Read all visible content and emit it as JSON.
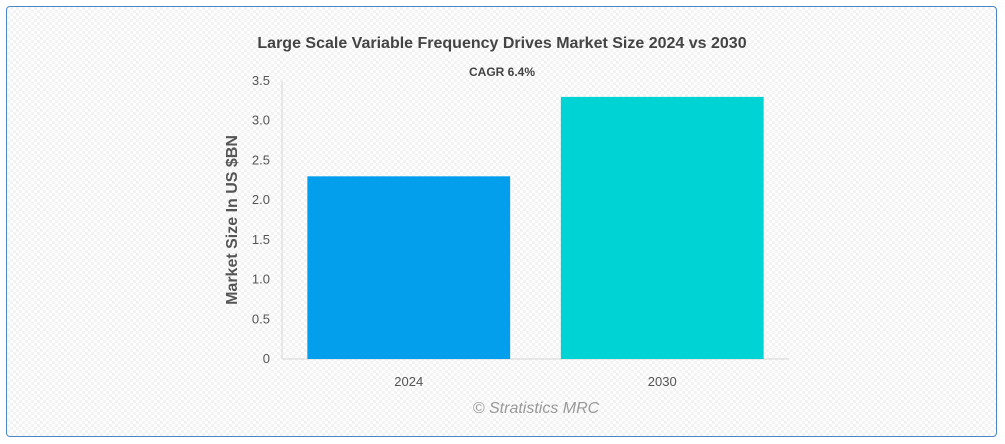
{
  "chart_data": {
    "type": "bar",
    "title": "Large Scale Variable Frequency Drives Market Size 2024 vs 2030",
    "annotation": "CAGR 6.4%",
    "categories": [
      "2024",
      "2030"
    ],
    "values": [
      2.3,
      3.3
    ],
    "colors": [
      "#039fec",
      "#00d3d3"
    ],
    "xlabel": "",
    "ylabel": "Market Size In US $BN",
    "ylim": [
      0,
      3.5
    ],
    "yticks": [
      "0",
      "0.5",
      "1.0",
      "1.5",
      "2.0",
      "2.5",
      "3.0",
      "3.5"
    ],
    "grid": false,
    "legend": "none"
  },
  "footer": {
    "credit": "© Stratistics MRC"
  }
}
